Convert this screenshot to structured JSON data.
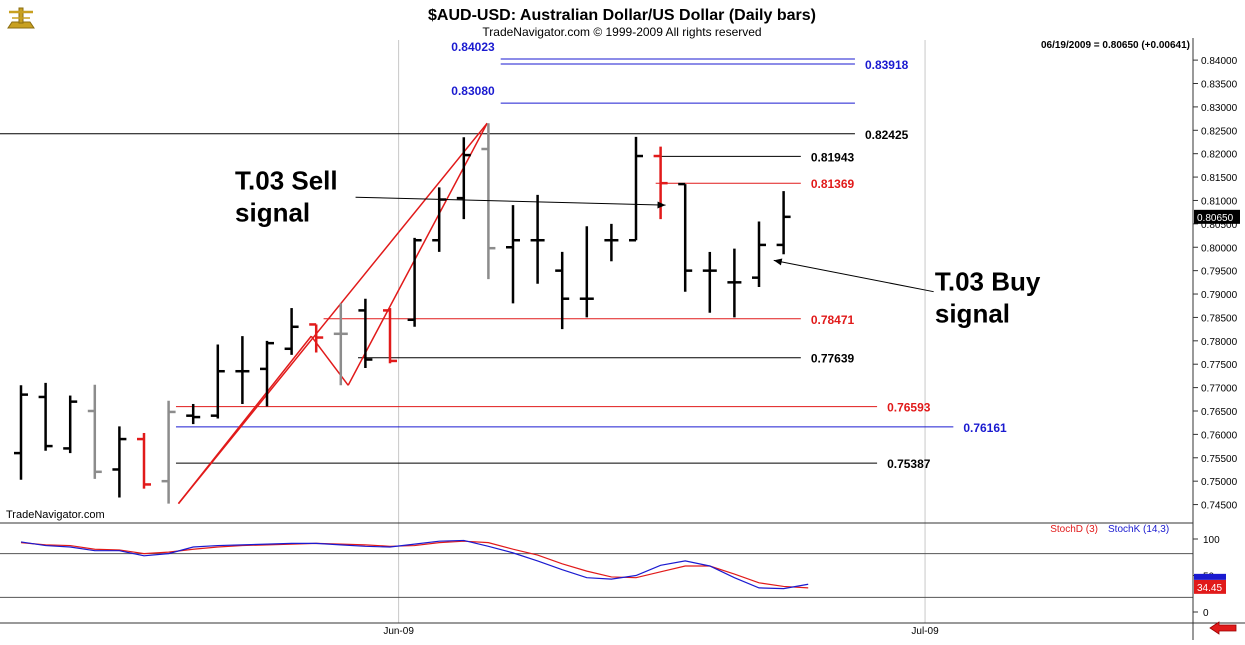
{
  "header": {
    "title": "$AUD-USD:  Australian Dollar/US Dollar  (Daily bars)",
    "copyright": "TradeNavigator.com © 1999-2009 All rights reserved",
    "status": "06/19/2009 = 0.80650 (+0.00641)",
    "watermark": "TradeNavigator.com"
  },
  "chart_data": [
    {
      "type": "ohlc",
      "y_axis": {
        "ylim": [
          0.7417,
          0.8443
        ],
        "ticks": [
          "0.84000",
          "0.83500",
          "0.83000",
          "0.82500",
          "0.82000",
          "0.81500",
          "0.81000",
          "0.80500",
          "0.80000",
          "0.79500",
          "0.79000",
          "0.78500",
          "0.78000",
          "0.77500",
          "0.77000",
          "0.76500",
          "0.76000",
          "0.75500",
          "0.75000",
          "0.74500"
        ]
      },
      "x_axis": {
        "ticks": [
          {
            "label": "Jun-09",
            "index": 15.35
          },
          {
            "label": "Jul-09",
            "index": 36.75
          }
        ]
      },
      "current_price": {
        "value": 0.8065,
        "label": "0.80650"
      },
      "bar_colors": {
        "black": "#000000",
        "gray": "#8c8c8c",
        "red": "#e11a1a"
      },
      "bars": [
        {
          "o": 0.756,
          "h": 0.7705,
          "l": 0.7503,
          "c": 0.7685,
          "color": "black"
        },
        {
          "o": 0.768,
          "h": 0.771,
          "l": 0.7565,
          "c": 0.7575,
          "color": "black"
        },
        {
          "o": 0.757,
          "h": 0.7683,
          "l": 0.756,
          "c": 0.767,
          "color": "black"
        },
        {
          "o": 0.765,
          "h": 0.7706,
          "l": 0.7505,
          "c": 0.752,
          "color": "gray"
        },
        {
          "o": 0.7525,
          "h": 0.7617,
          "l": 0.7465,
          "c": 0.759,
          "color": "black"
        },
        {
          "o": 0.759,
          "h": 0.7603,
          "l": 0.7484,
          "c": 0.7493,
          "color": "red"
        },
        {
          "o": 0.75,
          "h": 0.7672,
          "l": 0.7452,
          "c": 0.7648,
          "color": "gray"
        },
        {
          "o": 0.764,
          "h": 0.7665,
          "l": 0.7622,
          "c": 0.7637,
          "color": "black"
        },
        {
          "o": 0.764,
          "h": 0.7792,
          "l": 0.7634,
          "c": 0.7735,
          "color": "black"
        },
        {
          "o": 0.7735,
          "h": 0.781,
          "l": 0.7665,
          "c": 0.7735,
          "color": "black"
        },
        {
          "o": 0.774,
          "h": 0.78,
          "l": 0.766,
          "c": 0.7795,
          "color": "black"
        },
        {
          "o": 0.7783,
          "h": 0.787,
          "l": 0.777,
          "c": 0.783,
          "color": "black"
        },
        {
          "o": 0.7835,
          "h": 0.7835,
          "l": 0.7775,
          "c": 0.7807,
          "color": "red"
        },
        {
          "o": 0.7815,
          "h": 0.788,
          "l": 0.7705,
          "c": 0.7815,
          "color": "gray"
        },
        {
          "o": 0.7865,
          "h": 0.789,
          "l": 0.7742,
          "c": 0.776,
          "color": "black"
        },
        {
          "o": 0.7865,
          "h": 0.787,
          "l": 0.7752,
          "c": 0.7757,
          "color": "red"
        },
        {
          "o": 0.7845,
          "h": 0.802,
          "l": 0.783,
          "c": 0.8015,
          "color": "black"
        },
        {
          "o": 0.8015,
          "h": 0.8128,
          "l": 0.799,
          "c": 0.8102,
          "color": "black"
        },
        {
          "o": 0.8105,
          "h": 0.8235,
          "l": 0.806,
          "c": 0.8197,
          "color": "black"
        },
        {
          "o": 0.821,
          "h": 0.8265,
          "l": 0.7932,
          "c": 0.7998,
          "color": "gray"
        },
        {
          "o": 0.8,
          "h": 0.809,
          "l": 0.788,
          "c": 0.8015,
          "color": "black"
        },
        {
          "o": 0.8015,
          "h": 0.8112,
          "l": 0.7922,
          "c": 0.8015,
          "color": "black"
        },
        {
          "o": 0.795,
          "h": 0.799,
          "l": 0.7825,
          "c": 0.789,
          "color": "black"
        },
        {
          "o": 0.789,
          "h": 0.8045,
          "l": 0.785,
          "c": 0.789,
          "color": "black"
        },
        {
          "o": 0.8015,
          "h": 0.805,
          "l": 0.797,
          "c": 0.8015,
          "color": "black"
        },
        {
          "o": 0.8015,
          "h": 0.8236,
          "l": 0.8015,
          "c": 0.8195,
          "color": "black"
        },
        {
          "o": 0.8195,
          "h": 0.8215,
          "l": 0.806,
          "c": 0.8137,
          "color": "red"
        },
        {
          "o": 0.8135,
          "h": 0.8135,
          "l": 0.7905,
          "c": 0.795,
          "color": "black"
        },
        {
          "o": 0.795,
          "h": 0.799,
          "l": 0.786,
          "c": 0.795,
          "color": "black"
        },
        {
          "o": 0.7925,
          "h": 0.7997,
          "l": 0.785,
          "c": 0.7925,
          "color": "black"
        },
        {
          "o": 0.7935,
          "h": 0.8055,
          "l": 0.7915,
          "c": 0.8005,
          "color": "black"
        },
        {
          "o": 0.8005,
          "h": 0.812,
          "l": 0.7985,
          "c": 0.8065,
          "color": "black"
        }
      ],
      "levels": [
        {
          "value": 0.84023,
          "label": "0.84023",
          "color": "#1a1ad0",
          "label_side": "left",
          "start_index": 19.5,
          "end_index": 33.9
        },
        {
          "value": 0.83918,
          "label": "0.83918",
          "color": "#1a1ad0",
          "label_side": "right",
          "start_index": 19.5,
          "end_index": 33.9
        },
        {
          "value": 0.8308,
          "label": "0.83080",
          "color": "#1a1ad0",
          "label_side": "left",
          "start_index": 19.5,
          "end_index": 33.9
        },
        {
          "value": 0.82425,
          "label": "0.82425",
          "color": "#000000",
          "label_side": "right",
          "start_index": -1,
          "end_index": 33.9
        },
        {
          "value": 0.81943,
          "label": "0.81943",
          "color": "#000000",
          "label_side": "right",
          "start_index": 25.8,
          "end_index": 31.7
        },
        {
          "value": 0.81369,
          "label": "0.81369",
          "color": "#e11a1a",
          "label_side": "right",
          "start_index": 25.8,
          "end_index": 31.7
        },
        {
          "value": 0.78471,
          "label": "0.78471",
          "color": "#e11a1a",
          "label_side": "right",
          "start_index": 12.3,
          "end_index": 31.7
        },
        {
          "value": 0.77639,
          "label": "0.77639",
          "color": "#000000",
          "label_side": "right",
          "start_index": 13.7,
          "end_index": 31.7
        },
        {
          "value": 0.76593,
          "label": "0.76593",
          "color": "#e11a1a",
          "label_side": "right",
          "start_index": 6.3,
          "end_index": 34.8
        },
        {
          "value": 0.76161,
          "label": "0.76161",
          "color": "#1a1ad0",
          "label_side": "right",
          "start_index": 6.3,
          "end_index": 37.9
        },
        {
          "value": 0.75387,
          "label": "0.75387",
          "color": "#000000",
          "label_side": "right",
          "start_index": 6.3,
          "end_index": 34.8
        }
      ],
      "trendlines": [
        {
          "from": {
            "index": 6.4,
            "value": 0.7452
          },
          "to": {
            "index": 18.95,
            "value": 0.8265
          },
          "color": "#e11a1a"
        },
        {
          "from": {
            "index": 6.4,
            "value": 0.7452
          },
          "to": {
            "index": 11.8,
            "value": 0.781
          },
          "color": "#e11a1a"
        },
        {
          "from": {
            "index": 13.3,
            "value": 0.7705
          },
          "to": {
            "index": 18.95,
            "value": 0.8265
          },
          "color": "#e11a1a"
        },
        {
          "from": {
            "index": 11.8,
            "value": 0.781
          },
          "to": {
            "index": 13.3,
            "value": 0.7705
          },
          "color": "#e11a1a"
        }
      ],
      "annotations": [
        {
          "lines": [
            "T.03 Sell",
            "signal"
          ],
          "anchor": {
            "index": 8.7,
            "value": 0.8123
          },
          "arrow_from": {
            "index": 13.6,
            "value": 0.8107
          },
          "arrow_to": {
            "index": 26.2,
            "value": 0.809
          }
        },
        {
          "lines": [
            "T.03 Buy",
            "signal"
          ],
          "anchor": {
            "index": 37.15,
            "value": 0.7908
          },
          "arrow_from": {
            "index": 37.1,
            "value": 0.7905
          },
          "arrow_to": {
            "index": 30.6,
            "value": 0.7972
          }
        }
      ]
    },
    {
      "type": "line",
      "ylim": [
        0,
        100
      ],
      "ticks": [
        "100",
        "50",
        "0"
      ],
      "reference_lines": [
        80,
        20
      ],
      "legend": [
        {
          "name": "StochD (3)",
          "color": "#e11a1a"
        },
        {
          "name": "StochK (14,3)",
          "color": "#1a1ad0"
        }
      ],
      "current_value": {
        "value": 34.45,
        "label": "34.45"
      },
      "series": [
        {
          "name": "StochD (3)",
          "color": "#e11a1a",
          "values": [
            95,
            92,
            91,
            86,
            85,
            80,
            82,
            86,
            89,
            91,
            92,
            93,
            94,
            93,
            92,
            90,
            91,
            95,
            97,
            95,
            86,
            78,
            66,
            56,
            48,
            47,
            55,
            63,
            63,
            52,
            40,
            35,
            33
          ]
        },
        {
          "name": "StochK (14,3)",
          "color": "#1a1ad0",
          "values": [
            96,
            91,
            89,
            84,
            84,
            77,
            80,
            89,
            91,
            92,
            93,
            94,
            94,
            92,
            90,
            89,
            93,
            97,
            98,
            90,
            81,
            70,
            58,
            47,
            45,
            50,
            64,
            70,
            63,
            47,
            33,
            32,
            38
          ]
        }
      ]
    }
  ]
}
